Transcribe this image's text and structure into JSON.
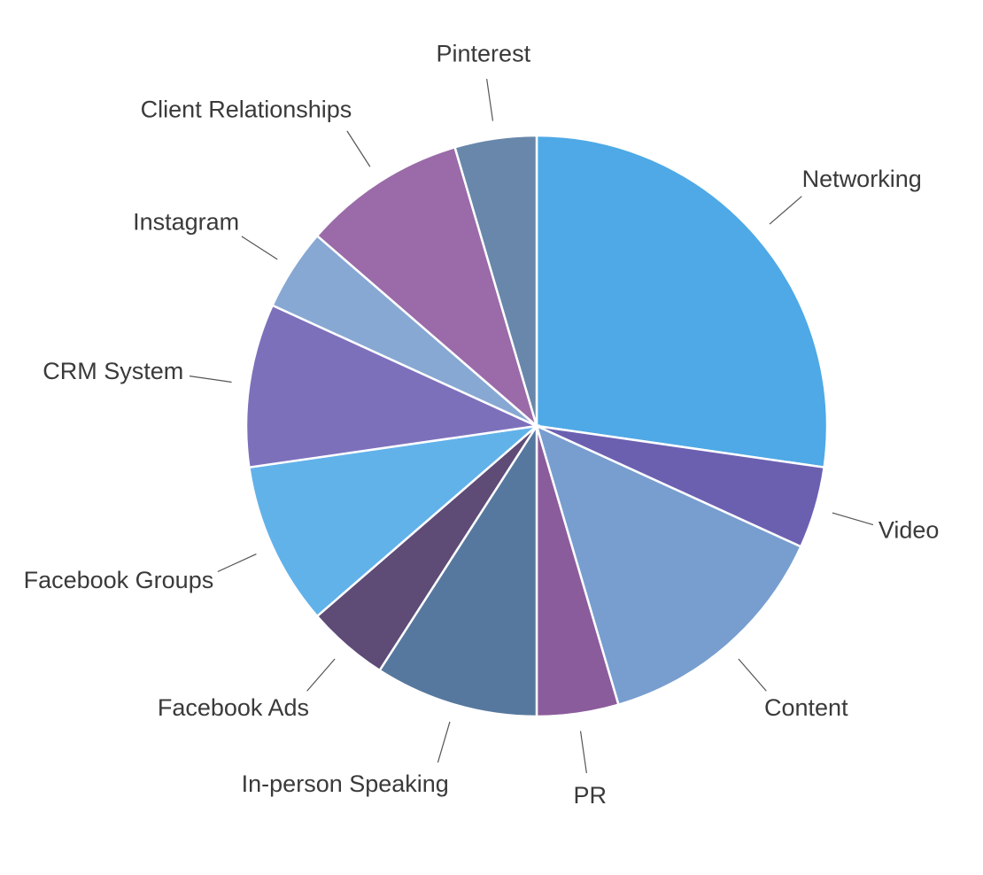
{
  "chart_data": {
    "type": "pie",
    "categories": [
      "Networking",
      "Video",
      "Content",
      "PR",
      "In-person Speaking",
      "Facebook Ads",
      "Facebook Groups",
      "CRM System",
      "Instagram",
      "Client Relationships",
      "Pinterest"
    ],
    "values": [
      6,
      1,
      3,
      1,
      2,
      1,
      2,
      2,
      1,
      2,
      1
    ],
    "colors": [
      "#4ea9e6",
      "#6b60b0",
      "#779ecf",
      "#8b5c9b",
      "#56789e",
      "#5e4b76",
      "#62b2ea",
      "#7d70bb",
      "#87a8d3",
      "#9a6ba8",
      "#6887aa"
    ]
  }
}
